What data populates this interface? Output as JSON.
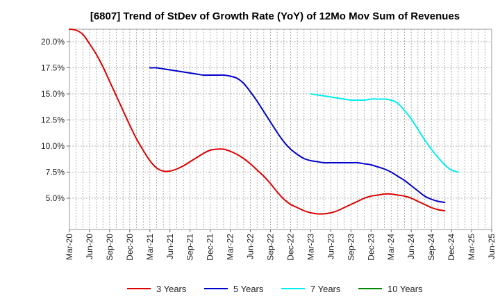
{
  "chart_data": {
    "type": "line",
    "title": "[6807]  Trend of StDev of Growth Rate (YoY) of 12Mo Mov Sum of Revenues",
    "xlabel": "",
    "ylabel": "",
    "x_ticks": [
      "Mar-20",
      "Jun-20",
      "Sep-20",
      "Dec-20",
      "Mar-21",
      "Jun-21",
      "Sep-21",
      "Dec-21",
      "Mar-22",
      "Jun-22",
      "Sep-22",
      "Dec-22",
      "Mar-23",
      "Jun-23",
      "Sep-23",
      "Dec-23",
      "Mar-24",
      "Jun-24",
      "Sep-24",
      "Dec-24",
      "Mar-25",
      "Jun-25"
    ],
    "y_ticks": [
      "5.0%",
      "7.5%",
      "10.0%",
      "12.5%",
      "15.0%",
      "17.5%",
      "20.0%"
    ],
    "y_tick_values": [
      5.0,
      7.5,
      10.0,
      12.5,
      15.0,
      17.5,
      20.0
    ],
    "ylim": [
      2.0,
      21.2
    ],
    "grid": true,
    "legend_position": "bottom",
    "series": [
      {
        "name": "3 Years",
        "color": "#dd0000",
        "start_month_index": 0,
        "values": [
          21.2,
          21.1,
          20.7,
          19.8,
          18.8,
          17.6,
          16.2,
          14.8,
          13.4,
          12.0,
          10.7,
          9.6,
          8.6,
          7.9,
          7.6,
          7.6,
          7.8,
          8.1,
          8.5,
          8.9,
          9.3,
          9.6,
          9.7,
          9.7,
          9.5,
          9.2,
          8.8,
          8.3,
          7.7,
          7.1,
          6.4,
          5.6,
          4.9,
          4.4,
          4.1,
          3.8,
          3.6,
          3.5,
          3.5,
          3.6,
          3.8,
          4.1,
          4.4,
          4.7,
          5.0,
          5.2,
          5.3,
          5.4,
          5.4,
          5.3,
          5.2,
          5.0,
          4.7,
          4.4,
          4.1,
          3.9,
          3.8
        ]
      },
      {
        "name": "5 Years",
        "color": "#0000cc",
        "start_month_index": 12,
        "values": [
          17.5,
          17.5,
          17.4,
          17.3,
          17.2,
          17.1,
          17.0,
          16.9,
          16.8,
          16.8,
          16.8,
          16.8,
          16.7,
          16.5,
          16.0,
          15.2,
          14.3,
          13.3,
          12.3,
          11.3,
          10.4,
          9.7,
          9.2,
          8.8,
          8.6,
          8.5,
          8.4,
          8.4,
          8.4,
          8.4,
          8.4,
          8.4,
          8.3,
          8.2,
          8.0,
          7.8,
          7.5,
          7.1,
          6.7,
          6.2,
          5.7,
          5.2,
          4.9,
          4.7,
          4.6
        ]
      },
      {
        "name": "7 Years",
        "color": "#00eeee",
        "start_month_index": 36,
        "values": [
          15.0,
          14.9,
          14.8,
          14.7,
          14.6,
          14.5,
          14.4,
          14.4,
          14.4,
          14.5,
          14.5,
          14.5,
          14.4,
          14.1,
          13.4,
          12.6,
          11.6,
          10.6,
          9.7,
          8.9,
          8.2,
          7.7,
          7.5
        ]
      },
      {
        "name": "10 Years",
        "color": "#008800",
        "start_month_index": 0,
        "values": []
      }
    ]
  }
}
